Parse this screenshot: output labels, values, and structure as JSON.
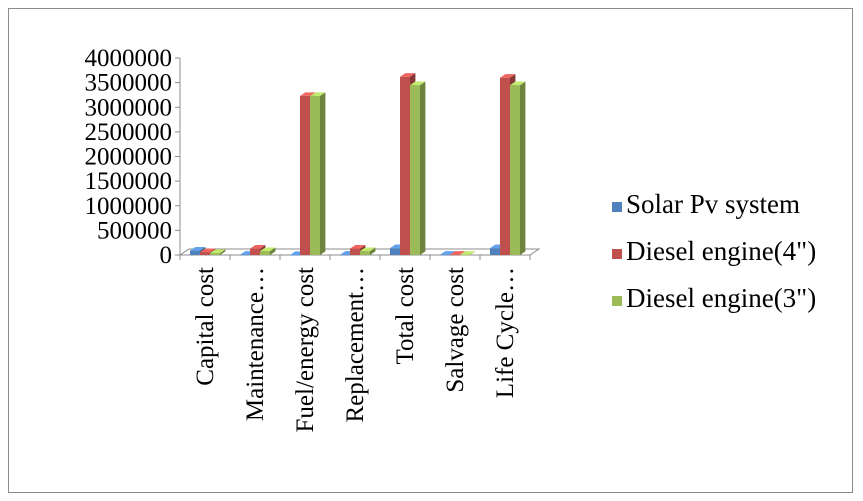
{
  "chart_data": {
    "type": "bar",
    "style": "3d-clustered-column",
    "categories": [
      "Capital cost",
      "Maintenance…",
      "Fuel/energy cost",
      "Replacement…",
      "Total cost",
      "Salvage cost",
      "Life Cycle…"
    ],
    "series": [
      {
        "name": "Solar Pv system",
        "color": "#4f81bd",
        "values": [
          90000,
          5000,
          0,
          5000,
          140000,
          5000,
          140000
        ]
      },
      {
        "name": "Diesel engine(4\")",
        "color": "#c0504d",
        "values": [
          60000,
          130000,
          3230000,
          130000,
          3620000,
          5000,
          3600000
        ]
      },
      {
        "name": "Diesel engine(3\")",
        "color": "#9bbb59",
        "values": [
          40000,
          80000,
          3230000,
          80000,
          3450000,
          5000,
          3450000
        ]
      }
    ],
    "yticks": [
      "0",
      "500000",
      "1000000",
      "1500000",
      "2000000",
      "2500000",
      "3000000",
      "3500000",
      "4000000"
    ],
    "ylim": [
      0,
      4000000
    ],
    "legend_position": "right",
    "grid": false
  }
}
